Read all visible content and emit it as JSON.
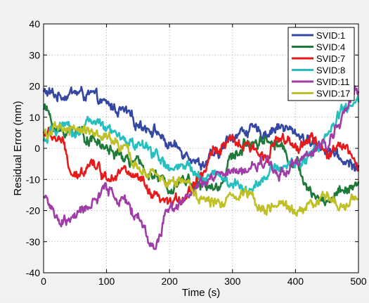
{
  "chart_data": {
    "type": "line",
    "title": "",
    "xlabel": "Time (s)",
    "ylabel": "Residual Error (mm)",
    "xlim": [
      0,
      500
    ],
    "ylim": [
      -40,
      40
    ],
    "xticks": [
      0,
      100,
      200,
      300,
      400,
      500
    ],
    "yticks": [
      -40,
      -30,
      -20,
      -10,
      0,
      10,
      20,
      30,
      40
    ],
    "grid": true,
    "legend_position": "top-right",
    "series": [
      {
        "name": "SVID:1",
        "color": "#3447a3",
        "x": [
          0,
          25,
          50,
          75,
          100,
          125,
          150,
          175,
          200,
          225,
          250,
          275,
          300,
          325,
          350,
          375,
          400,
          425,
          450,
          475,
          500
        ],
        "y": [
          18,
          17,
          18,
          17,
          14,
          12,
          8,
          6,
          1,
          -1,
          -5,
          -2,
          4,
          6,
          5,
          7,
          5,
          2,
          0,
          -4,
          -6
        ]
      },
      {
        "name": "SVID:4",
        "color": "#1f7a3a",
        "x": [
          0,
          25,
          50,
          75,
          100,
          125,
          150,
          175,
          200,
          225,
          250,
          275,
          300,
          325,
          350,
          375,
          400,
          425,
          450,
          475,
          500
        ],
        "y": [
          13,
          5,
          6,
          3,
          0,
          -3,
          -5,
          -9,
          -12,
          -10,
          -12,
          -13,
          -3,
          2,
          3,
          1,
          -5,
          -15,
          -17,
          -13,
          -12
        ]
      },
      {
        "name": "SVID:7",
        "color": "#e61a1a",
        "x": [
          0,
          25,
          50,
          75,
          100,
          125,
          150,
          175,
          200,
          225,
          250,
          275,
          300,
          325,
          350,
          375,
          400,
          425,
          450,
          475,
          500
        ],
        "y": [
          5,
          3,
          -10,
          -4,
          -9,
          -7,
          -10,
          -16,
          -18,
          -15,
          -8,
          0,
          2,
          0,
          -2,
          3,
          0,
          3,
          -2,
          2,
          -6
        ]
      },
      {
        "name": "SVID:8",
        "color": "#26bfbf",
        "x": [
          0,
          25,
          50,
          75,
          100,
          125,
          150,
          175,
          200,
          225,
          250,
          275,
          300,
          325,
          350,
          375,
          400,
          425,
          450,
          475,
          500
        ],
        "y": [
          2,
          7,
          5,
          9,
          6,
          3,
          1,
          -1,
          -7,
          -6,
          -9,
          -8,
          -12,
          -13,
          -9,
          -6,
          -5,
          -2,
          4,
          12,
          15
        ]
      },
      {
        "name": "SVID:11",
        "color": "#a03ca8",
        "x": [
          0,
          25,
          50,
          75,
          100,
          125,
          150,
          175,
          200,
          225,
          250,
          275,
          300,
          325,
          350,
          375,
          400,
          425,
          450,
          475,
          500
        ],
        "y": [
          -15,
          -24,
          -22,
          -18,
          -13,
          -17,
          -22,
          -32,
          -19,
          -16,
          -12,
          -9,
          -8,
          -7,
          -4,
          -8,
          -5,
          -2,
          2,
          10,
          20
        ]
      },
      {
        "name": "SVID:17",
        "color": "#bfbf26",
        "x": [
          0,
          25,
          50,
          75,
          100,
          125,
          150,
          175,
          200,
          225,
          250,
          275,
          300,
          325,
          350,
          375,
          400,
          425,
          450,
          475,
          500
        ],
        "y": [
          5,
          6,
          6,
          6,
          3,
          0,
          -6,
          -9,
          -11,
          -10,
          -16,
          -18,
          -15,
          -14,
          -19,
          -19,
          -20,
          -18,
          -16,
          -18,
          -16
        ]
      }
    ]
  }
}
